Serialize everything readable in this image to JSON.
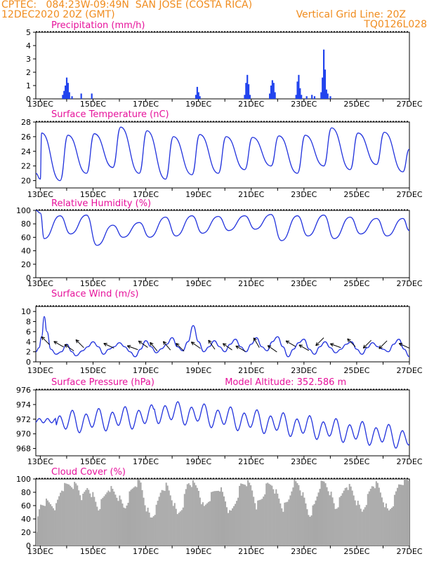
{
  "header": {
    "line1": "CPTEC:   084:23W-09:49N  SAN JOSE (COSTA RICA)",
    "line2_left": "12DEC2020 20Z (GMT)",
    "line2_right": "Vertical Grid Line: 20Z",
    "line3_right": "TQ0126L028",
    "model_altitude": "Model Altitude: 352.586 m"
  },
  "colors": {
    "header": "#f08c1e",
    "title": "#e6129b",
    "line": "#2233dd",
    "bar": "#2244ee",
    "cloud": "#a8a8a8",
    "arrow": "#000000"
  },
  "x_axis": {
    "ticks": [
      "13DEC",
      "15DEC",
      "17DEC",
      "19DEC",
      "21DEC",
      "23DEC",
      "25DEC",
      "27DEC"
    ],
    "tick_days": [
      13,
      15,
      17,
      19,
      21,
      23,
      25,
      27
    ],
    "range_days": [
      12.83,
      27.0
    ]
  },
  "chart_data": [
    {
      "type": "bar",
      "title": "Precipitation (mm/h)",
      "ylim": [
        0,
        5
      ],
      "yticks": [
        0,
        1,
        2,
        3,
        4,
        5
      ],
      "points": [
        [
          13.85,
          0.3
        ],
        [
          13.9,
          0.6
        ],
        [
          13.95,
          1.0
        ],
        [
          14.0,
          1.6
        ],
        [
          14.05,
          1.2
        ],
        [
          14.1,
          0.5
        ],
        [
          14.2,
          0.2
        ],
        [
          14.55,
          0.4
        ],
        [
          14.95,
          0.4
        ],
        [
          18.9,
          0.3
        ],
        [
          18.95,
          0.9
        ],
        [
          19.0,
          0.5
        ],
        [
          19.05,
          0.2
        ],
        [
          20.75,
          0.3
        ],
        [
          20.8,
          1.2
        ],
        [
          20.85,
          1.8
        ],
        [
          20.9,
          1.1
        ],
        [
          20.95,
          0.3
        ],
        [
          21.7,
          0.4
        ],
        [
          21.75,
          1.0
        ],
        [
          21.8,
          1.4
        ],
        [
          21.85,
          1.2
        ],
        [
          21.9,
          0.5
        ],
        [
          22.7,
          0.3
        ],
        [
          22.75,
          1.3
        ],
        [
          22.8,
          1.8
        ],
        [
          22.85,
          0.8
        ],
        [
          22.9,
          0.3
        ],
        [
          23.1,
          0.2
        ],
        [
          23.3,
          0.3
        ],
        [
          23.4,
          0.2
        ],
        [
          23.65,
          0.5
        ],
        [
          23.7,
          1.6
        ],
        [
          23.75,
          3.7
        ],
        [
          23.8,
          2.2
        ],
        [
          23.85,
          0.7
        ],
        [
          23.9,
          0.4
        ],
        [
          24.0,
          0.2
        ]
      ]
    },
    {
      "type": "line",
      "title": "Surface Temperature (nC)",
      "ylim": [
        19,
        28
      ],
      "yticks": [
        20,
        22,
        24,
        26,
        28
      ],
      "day_max": [
        26.5,
        26.2,
        26.4,
        27.3,
        26.8,
        26.0,
        26.3,
        26.0,
        25.9,
        26.1,
        26.2,
        27.2,
        26.5,
        26.6
      ],
      "day_min": [
        20.0,
        21.0,
        21.8,
        21.0,
        20.2,
        20.8,
        21.0,
        21.5,
        22.0,
        21.0,
        22.0,
        21.5,
        22.2,
        21.2
      ],
      "start_value": 21.0,
      "end_value": 24.3
    },
    {
      "type": "line",
      "title": "Relative Humidity (%)",
      "ylim": [
        0,
        100
      ],
      "yticks": [
        0,
        20,
        40,
        60,
        80,
        100
      ],
      "day_high": [
        100,
        92,
        93,
        78,
        82,
        90,
        92,
        91,
        92,
        94,
        92,
        93,
        90,
        88,
        88
      ],
      "day_low": [
        98,
        58,
        65,
        48,
        60,
        60,
        62,
        66,
        70,
        72,
        55,
        62,
        58,
        65,
        62
      ]
    },
    {
      "type": "line",
      "title": "Surface Wind (m/s)",
      "ylim": [
        0,
        11
      ],
      "yticks": [
        0,
        2,
        4,
        6,
        8,
        10
      ],
      "speed_curve": [
        [
          12.83,
          2.0
        ],
        [
          12.95,
          2.8
        ],
        [
          13.05,
          5.0
        ],
        [
          13.15,
          9.0
        ],
        [
          13.25,
          6.0
        ],
        [
          13.4,
          2.5
        ],
        [
          13.6,
          1.5
        ],
        [
          13.8,
          2.0
        ],
        [
          14.0,
          3.5
        ],
        [
          14.2,
          2.0
        ],
        [
          14.35,
          1.2
        ],
        [
          14.6,
          2.2
        ],
        [
          14.8,
          3.0
        ],
        [
          15.0,
          4.0
        ],
        [
          15.2,
          3.0
        ],
        [
          15.4,
          1.5
        ],
        [
          15.6,
          2.5
        ],
        [
          15.8,
          3.0
        ],
        [
          16.0,
          3.8
        ],
        [
          16.2,
          3.0
        ],
        [
          16.4,
          2.0
        ],
        [
          16.6,
          1.0
        ],
        [
          16.8,
          2.5
        ],
        [
          17.0,
          4.2
        ],
        [
          17.2,
          3.0
        ],
        [
          17.4,
          1.8
        ],
        [
          17.6,
          2.6
        ],
        [
          17.8,
          3.5
        ],
        [
          18.0,
          4.8
        ],
        [
          18.2,
          3.0
        ],
        [
          18.4,
          2.2
        ],
        [
          18.6,
          4.0
        ],
        [
          18.8,
          7.2
        ],
        [
          19.0,
          4.0
        ],
        [
          19.2,
          2.0
        ],
        [
          19.4,
          3.0
        ],
        [
          19.6,
          4.2
        ],
        [
          19.8,
          3.0
        ],
        [
          20.0,
          2.0
        ],
        [
          20.2,
          3.5
        ],
        [
          20.4,
          4.5
        ],
        [
          20.6,
          3.0
        ],
        [
          20.8,
          2.0
        ],
        [
          21.0,
          3.5
        ],
        [
          21.2,
          4.8
        ],
        [
          21.4,
          3.0
        ],
        [
          21.6,
          2.2
        ],
        [
          21.8,
          4.0
        ],
        [
          22.0,
          5.0
        ],
        [
          22.2,
          3.0
        ],
        [
          22.4,
          1.0
        ],
        [
          22.6,
          2.5
        ],
        [
          22.8,
          3.8
        ],
        [
          23.0,
          4.5
        ],
        [
          23.2,
          2.5
        ],
        [
          23.4,
          1.5
        ],
        [
          23.6,
          3.0
        ],
        [
          23.8,
          4.0
        ],
        [
          24.0,
          2.8
        ],
        [
          24.2,
          1.8
        ],
        [
          24.4,
          2.5
        ],
        [
          24.6,
          3.5
        ],
        [
          24.8,
          4.0
        ],
        [
          25.0,
          2.5
        ],
        [
          25.2,
          1.5
        ],
        [
          25.4,
          2.8
        ],
        [
          25.6,
          3.8
        ],
        [
          25.8,
          3.0
        ],
        [
          26.0,
          2.5
        ],
        [
          26.2,
          2.0
        ],
        [
          26.4,
          3.5
        ],
        [
          26.6,
          4.5
        ],
        [
          26.8,
          2.5
        ],
        [
          27.0,
          1.0
        ]
      ],
      "arrows": [
        [
          13.2,
          4.2,
          225
        ],
        [
          13.7,
          3.5,
          210
        ],
        [
          14.1,
          2.8,
          215
        ],
        [
          14.5,
          3.6,
          225
        ],
        [
          15.6,
          3.2,
          205
        ],
        [
          16.5,
          2.8,
          200
        ],
        [
          16.9,
          3.5,
          215
        ],
        [
          17.3,
          3.0,
          230
        ],
        [
          17.8,
          3.2,
          230
        ],
        [
          18.3,
          2.9,
          225
        ],
        [
          18.9,
          3.3,
          215
        ],
        [
          19.5,
          3.4,
          235
        ],
        [
          20.1,
          3.0,
          215
        ],
        [
          20.6,
          2.6,
          210
        ],
        [
          21.2,
          3.8,
          240
        ],
        [
          21.8,
          2.6,
          215
        ],
        [
          22.5,
          3.6,
          210
        ],
        [
          23.0,
          2.8,
          210
        ],
        [
          23.6,
          4.0,
          135
        ],
        [
          24.2,
          3.2,
          200
        ],
        [
          24.8,
          3.8,
          225
        ],
        [
          25.4,
          3.5,
          135
        ],
        [
          26.0,
          3.4,
          135
        ],
        [
          26.8,
          3.2,
          205
        ]
      ]
    },
    {
      "type": "line",
      "title": "Surface Pressure (hPa)",
      "ylim": [
        967,
        976
      ],
      "yticks": [
        968,
        970,
        972,
        974,
        976
      ]
    },
    {
      "type": "bar",
      "title": "Cloud Cover (%)",
      "ylim": [
        0,
        100
      ],
      "yticks": [
        0,
        20,
        40,
        60,
        80,
        100
      ],
      "envelope": [
        [
          12.83,
          20
        ],
        [
          13.0,
          60
        ],
        [
          13.2,
          65
        ],
        [
          13.4,
          62
        ],
        [
          13.6,
          58
        ],
        [
          13.8,
          85
        ],
        [
          14.1,
          92
        ],
        [
          14.4,
          90
        ],
        [
          14.6,
          70
        ],
        [
          14.8,
          88
        ],
        [
          15.0,
          75
        ],
        [
          15.2,
          55
        ],
        [
          15.4,
          70
        ],
        [
          15.6,
          88
        ],
        [
          15.8,
          80
        ],
        [
          16.0,
          70
        ],
        [
          16.2,
          55
        ],
        [
          16.4,
          78
        ],
        [
          16.6,
          92
        ],
        [
          16.8,
          95
        ],
        [
          17.0,
          60
        ],
        [
          17.2,
          40
        ],
        [
          17.4,
          55
        ],
        [
          17.6,
          85
        ],
        [
          17.8,
          90
        ],
        [
          18.0,
          70
        ],
        [
          18.2,
          45
        ],
        [
          18.4,
          60
        ],
        [
          18.6,
          95
        ],
        [
          18.8,
          92
        ],
        [
          19.0,
          85
        ],
        [
          19.2,
          55
        ],
        [
          19.4,
          70
        ],
        [
          19.6,
          80
        ],
        [
          19.8,
          88
        ],
        [
          20.0,
          70
        ],
        [
          20.2,
          45
        ],
        [
          20.4,
          65
        ],
        [
          20.6,
          90
        ],
        [
          20.8,
          95
        ],
        [
          21.0,
          88
        ],
        [
          21.2,
          60
        ],
        [
          21.4,
          70
        ],
        [
          21.6,
          90
        ],
        [
          21.8,
          92
        ],
        [
          22.0,
          75
        ],
        [
          22.2,
          55
        ],
        [
          22.4,
          65
        ],
        [
          22.6,
          95
        ],
        [
          22.8,
          92
        ],
        [
          23.0,
          70
        ],
        [
          23.2,
          45
        ],
        [
          23.4,
          60
        ],
        [
          23.6,
          90
        ],
        [
          23.8,
          95
        ],
        [
          24.0,
          80
        ],
        [
          24.2,
          55
        ],
        [
          24.4,
          70
        ],
        [
          24.6,
          92
        ],
        [
          24.8,
          85
        ],
        [
          25.0,
          65
        ],
        [
          25.2,
          50
        ],
        [
          25.4,
          70
        ],
        [
          25.6,
          92
        ],
        [
          25.8,
          90
        ],
        [
          26.0,
          70
        ],
        [
          26.2,
          50
        ],
        [
          26.4,
          65
        ],
        [
          26.6,
          92
        ],
        [
          26.8,
          98
        ],
        [
          27.0,
          98
        ]
      ]
    }
  ]
}
